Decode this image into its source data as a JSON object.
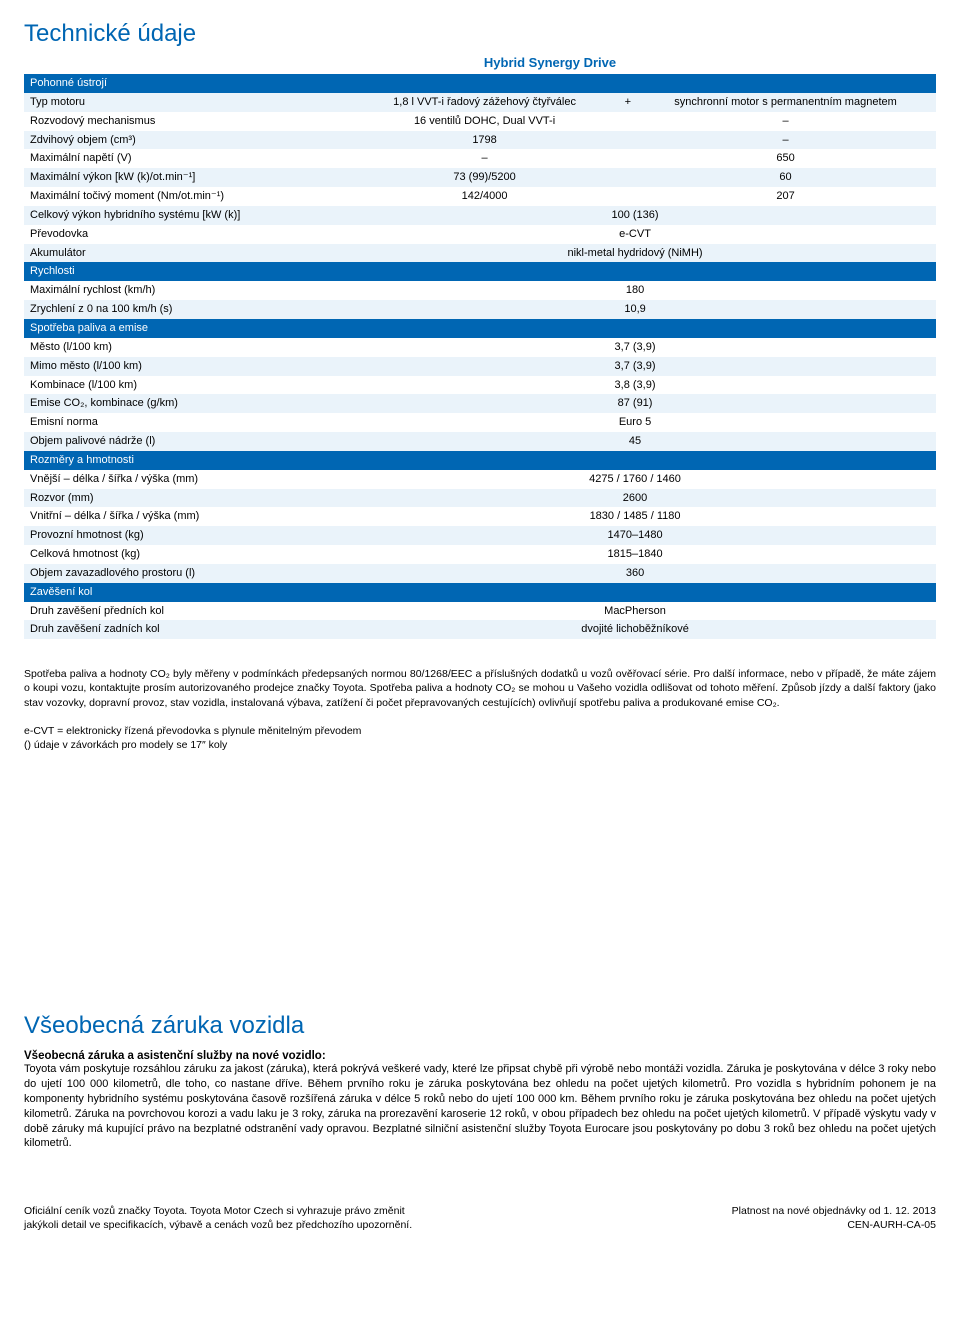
{
  "title": "Technické údaje",
  "column_header": "Hybrid Synergy Drive",
  "colors": {
    "brand": "#0066b3",
    "row_alt": "#eaf3fa",
    "bg": "#ffffff"
  },
  "sections": [
    {
      "name": "Pohonné ústrojí",
      "rows": [
        {
          "label": "Typ motoru",
          "v1": "1,8 l VVT-i řadový zážehový čtyřválec",
          "plus": "+",
          "v2": "synchronní motor s permanentním magnetem"
        },
        {
          "label": "Rozvodový mechanismus",
          "v1": "16 ventilů DOHC, Dual VVT-i",
          "v2": "–"
        },
        {
          "label": "Zdvihový objem (cm³)",
          "v1": "1798",
          "v2": "–"
        },
        {
          "label": "Maximální napětí (V)",
          "v1": "–",
          "v2": "650"
        },
        {
          "label": "Maximální výkon [kW (k)/ot.min⁻¹]",
          "v1": "73 (99)/5200",
          "v2": "60"
        },
        {
          "label": "Maximální točivý moment (Nm/ot.min⁻¹)",
          "v1": "142/4000",
          "v2": "207"
        },
        {
          "label": "Celkový výkon hybridního systému [kW (k)]",
          "full": "100 (136)"
        },
        {
          "label": "Převodovka",
          "full": "e-CVT"
        },
        {
          "label": "Akumulátor",
          "full": "nikl-metal hydridový (NiMH)"
        }
      ]
    },
    {
      "name": "Rychlosti",
      "rows": [
        {
          "label": "Maximální rychlost (km/h)",
          "full": "180"
        },
        {
          "label": "Zrychlení z 0 na 100 km/h (s)",
          "full": "10,9"
        }
      ]
    },
    {
      "name": "Spotřeba paliva a emise",
      "rows": [
        {
          "label": "Město (l/100 km)",
          "full": "3,7 (3,9)"
        },
        {
          "label": "Mimo město (l/100 km)",
          "full": "3,7 (3,9)"
        },
        {
          "label": "Kombinace (l/100 km)",
          "full": "3,8 (3,9)"
        },
        {
          "label": "Emise CO₂, kombinace (g/km)",
          "full": "87 (91)"
        },
        {
          "label": "Emisní norma",
          "full": "Euro 5"
        },
        {
          "label": "Objem palivové nádrže (l)",
          "full": "45"
        }
      ]
    },
    {
      "name": "Rozměry a hmotnosti",
      "rows": [
        {
          "label": "Vnější – délka / šířka / výška (mm)",
          "full": "4275 / 1760 / 1460"
        },
        {
          "label": "Rozvor (mm)",
          "full": "2600"
        },
        {
          "label": "Vnitřní – délka / šířka / výška (mm)",
          "full": "1830 / 1485 / 1180"
        },
        {
          "label": "Provozní hmotnost (kg)",
          "full": "1470–1480"
        },
        {
          "label": "Celková hmotnost (kg)",
          "full": "1815–1840"
        },
        {
          "label": "Objem zavazadlového prostoru (l)",
          "full": "360"
        }
      ]
    },
    {
      "name": "Zavěšení kol",
      "rows": [
        {
          "label": "Druh zavěšení předních kol",
          "full": "MacPherson"
        },
        {
          "label": "Druh zavěšení zadních kol",
          "full": "dvojité lichoběžníkové"
        }
      ]
    }
  ],
  "fineprint1": "Spotřeba paliva a hodnoty CO₂ byly měřeny v podmínkách předepsaných normou 80/1268/EEC a příslušných dodatků u vozů ověřovací série. Pro další informace, nebo v případě, že máte zájem o koupi vozu, kontaktujte prosím autorizovaného prodejce značky Toyota. Spotřeba paliva a hodnoty CO₂ se mohou u Vašeho vozidla odlišovat od tohoto měření. Způsob jízdy a další faktory (jako stav vozovky, dopravní provoz, stav vozidla, instalovaná výbava, zatížení či počet přepravovaných cestujících) ovlivňují spotřebu paliva a produkované emise CO₂.",
  "fineprint2_line1": "e-CVT = elektronicky řízená převodovka s plynule měnitelným převodem",
  "fineprint2_line2": "() údaje v závorkách pro modely se 17″ koly",
  "warranty_title": "Všeobecná záruka vozidla",
  "warranty_sub": "Všeobecná záruka a asistenční služby na nové vozidlo:",
  "warranty_body": "Toyota vám poskytuje rozsáhlou záruku za jakost (záruka), která pokrývá veškeré vady, které lze připsat chybě při výrobě nebo montáži vozidla. Záruka je poskytována v délce 3 roky nebo do ujetí 100 000 kilometrů, dle toho, co nastane dříve. Během prvního roku je záruka poskytována bez ohledu na počet ujetých kilometrů. Pro vozidla s hybridním pohonem je na komponenty hybridního systému poskytována časově rozšířená záruka v délce 5 roků nebo do ujetí 100 000 km. Během prvního roku je záruka poskytována bez ohledu na počet ujetých kilometrů. Záruka na povrchovou korozi a vadu laku je 3 roky, záruka na prorezavění karoserie 12 roků, v obou případech bez ohledu na počet ujetých kilometrů. V případě výskytu vady v době záruky má kupující právo na bezplatné odstranění vady opravou. Bezplatné silniční asistenční služby Toyota Eurocare jsou poskytovány po dobu 3 roků bez ohledu na počet ujetých kilometrů.",
  "footer_left_1": "Oficiální ceník vozů značky Toyota. Toyota Motor Czech si vyhrazuje právo změnit",
  "footer_left_2": "jakýkoli detail ve specifikacích, výbavě a cenách vozů bez předchozího upozornění.",
  "footer_right_1": "Platnost na nové objednávky od 1. 12. 2013",
  "footer_right_2": "CEN-AURH-CA-05"
}
